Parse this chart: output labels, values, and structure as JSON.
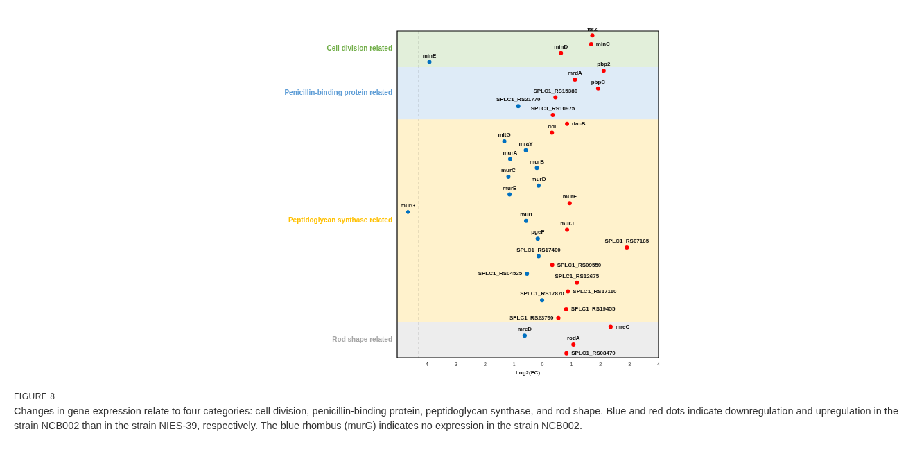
{
  "chart_data": {
    "type": "scatter",
    "orientation": "horizontal",
    "xlabel": "Log2(FC)",
    "categories": [
      "ftsZ",
      "minC",
      "minD",
      "minE",
      "pbp2",
      "mrdA",
      "pbpC",
      "SPLC1_RS15380",
      "SPLC1_RS21770",
      "SPLC1_RS10975",
      "dacB",
      "ddl",
      "mltG",
      "mraY",
      "murA",
      "murB",
      "murC",
      "murD",
      "murE",
      "murF",
      "murG",
      "murI",
      "murJ",
      "pgeF",
      "SPLC1_RS07165",
      "SPLC1_RS17400",
      "SPLC1_RS09550",
      "SPLC1_RS04525",
      "SPLC1_RS12675",
      "SPLC1_RS17110",
      "SPLC1_RS17870",
      "SPLC1_RS19455",
      "SPLC1_RS23760",
      "mreC",
      "mreD",
      "rodA",
      "SPLC1_RS08470"
    ],
    "series": [
      {
        "color": "#ff0000",
        "marker": "circle",
        "values": [
          1.72,
          1.68,
          0.64,
          null,
          2.11,
          1.12,
          1.92,
          0.45,
          null,
          0.36,
          0.85,
          0.33,
          null,
          null,
          null,
          null,
          null,
          null,
          null,
          0.94,
          null,
          null,
          0.85,
          null,
          2.91,
          null,
          0.34,
          null,
          1.19,
          0.88,
          null,
          0.82,
          0.55,
          2.35,
          null,
          1.07,
          0.83
        ]
      },
      {
        "color": "#0070c0",
        "marker": "circle",
        "values": [
          null,
          null,
          null,
          -3.89,
          null,
          null,
          null,
          null,
          -0.83,
          null,
          null,
          null,
          -1.31,
          -0.57,
          -1.11,
          -0.19,
          -1.17,
          -0.13,
          -1.13,
          null,
          null,
          -0.56,
          null,
          -0.16,
          null,
          -0.13,
          null,
          -0.53,
          null,
          null,
          -0.01,
          null,
          null,
          null,
          -0.61,
          null,
          null
        ]
      },
      {
        "color": "#0070c0",
        "marker": "diamond",
        "values": [
          null,
          null,
          null,
          null,
          null,
          null,
          null,
          null,
          null,
          null,
          null,
          null,
          null,
          null,
          null,
          null,
          null,
          null,
          null,
          null,
          -4.63,
          null,
          null,
          null,
          null,
          null,
          null,
          null,
          null,
          null,
          null,
          null,
          null,
          null,
          null,
          null,
          null
        ]
      }
    ],
    "xlim": [
      -5,
      4
    ],
    "xticks": [
      -4,
      -3,
      -2,
      -1,
      0,
      1,
      2,
      3,
      4
    ],
    "tick_labels": "x",
    "grid": false,
    "legend": false,
    "bands": [
      {
        "axis": "y",
        "from": "ftsZ",
        "to": "minE",
        "label": "Cell division related",
        "color": "#70ad47"
      },
      {
        "axis": "y",
        "from": "pbp2",
        "to": "SPLC1_RS10975",
        "label": "Penicillin-binding protein related",
        "color": "#5b9bd5"
      },
      {
        "axis": "y",
        "from": "dacB",
        "to": "SPLC1_RS23760",
        "label": "Peptidoglycan synthase related",
        "color": "#ffc000"
      },
      {
        "axis": "y",
        "from": "mreC",
        "to": "SPLC1_RS08470",
        "label": "Rod shape related",
        "color": "#a5a5a5"
      }
    ],
    "ref_lines": [
      {
        "axis": "x",
        "value": -4.25,
        "line_style": "dashed",
        "color": "#000000"
      }
    ],
    "annotations": [
      "FIGURE 8",
      "Changes in gene expression relate to four categories: cell division, penicillin-binding protein, peptidoglycan synthase, and rod shape. Blue and red dots indicate downregulation and upregulation in the strain NCB002 than in the strain NIES-39, respectively. The blue rhombus (murG) indicates no expression in the strain NCB002."
    ]
  }
}
